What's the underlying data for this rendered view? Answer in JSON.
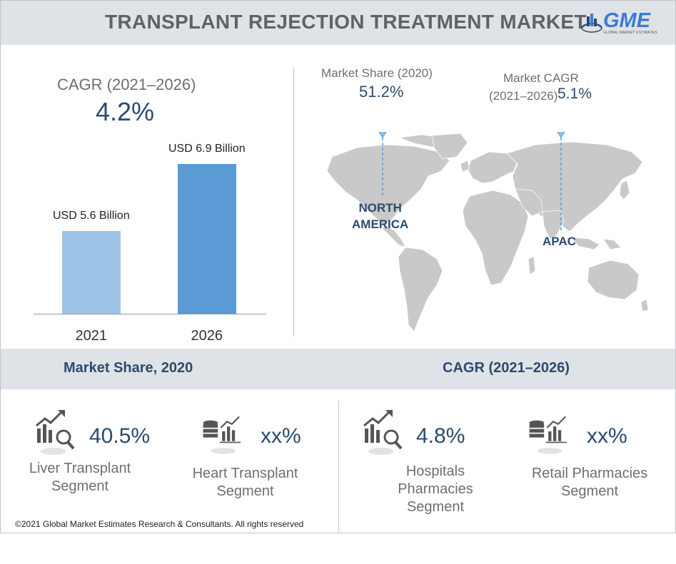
{
  "header": {
    "title": "TRANSPLANT REJECTION TREATMENT MARKET",
    "logo_text": "GME",
    "logo_sub": "GLOBAL MARKET ESTIMATES"
  },
  "overview": {
    "cagr_label": "CAGR (2021–2026)",
    "cagr_value": "4.2%"
  },
  "chart_data": {
    "type": "bar",
    "categories": [
      "2021",
      "2026"
    ],
    "values": [
      5.6,
      6.9
    ],
    "data_labels": [
      "USD 5.6 Billion",
      "USD 6.9 Billion"
    ],
    "colors": [
      "#9dc3e6",
      "#5b9bd5"
    ],
    "title": "",
    "xlabel": "",
    "ylabel": ""
  },
  "map": {
    "left_label": "Market Share (2020)",
    "left_value": "51.2%",
    "left_region_line1": "NORTH",
    "left_region_line2": "AMERICA",
    "right_label_line1": "Market CAGR",
    "right_label_line2": "(2021–2026)",
    "right_value": "5.1%",
    "right_region": "APAC"
  },
  "segments": {
    "left_title": "Market Share, 2020",
    "right_title": "CAGR (2021–2026)",
    "items": [
      {
        "value": "40.5%",
        "line1": "Liver Transplant",
        "line2": "Segment",
        "line3": "",
        "icon": "chart-magnifier-icon"
      },
      {
        "value": "xx%",
        "line1": "Heart Transplant",
        "line2": "Segment",
        "line3": "",
        "icon": "database-chart-icon"
      },
      {
        "value": "4.8%",
        "line1": "Hospitals",
        "line2": "Pharmacies",
        "line3": "Segment",
        "icon": "chart-magnifier-icon"
      },
      {
        "value": "xx%",
        "line1": "Retail Pharmacies",
        "line2": "Segment",
        "line3": "",
        "icon": "database-chart-icon"
      }
    ]
  },
  "footer": {
    "copyright": "©2021 Global Market Estimates Research & Consultants. All rights reserved"
  },
  "colors": {
    "accent": "#2b4a6e",
    "bar_light": "#9dc3e6",
    "bar_dark": "#5b9bd5",
    "band": "#dfe3e8",
    "map_gray": "#c9c9c9",
    "pin": "#8ec1ec"
  }
}
